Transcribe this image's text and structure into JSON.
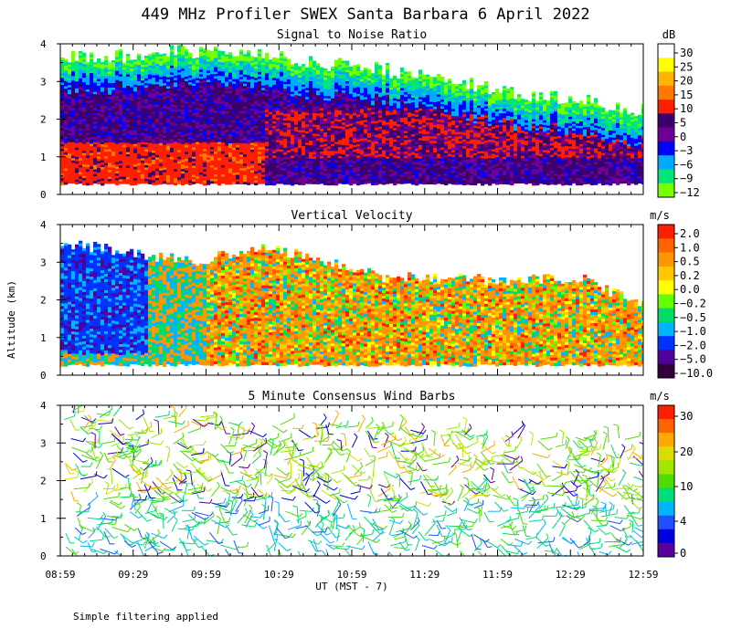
{
  "title": "449 MHz Profiler SWEX Santa Barbara  6 April 2022",
  "ylabel": "Altitude (km)",
  "xlabel": "UT  (MST - 7)",
  "note": "Simple filtering applied",
  "x_ticks": [
    "08:59",
    "09:29",
    "09:59",
    "10:29",
    "10:59",
    "11:29",
    "11:59",
    "12:29",
    "12:59"
  ],
  "y_ticks": [
    "0",
    "1",
    "2",
    "3",
    "4"
  ],
  "chart_data": [
    {
      "type": "heatmap",
      "title": "Signal to Noise Ratio",
      "colorbar_unit": "dB",
      "colorbar_labels": [
        "30",
        "25",
        "20",
        "15",
        "10",
        "5",
        "0",
        "−3",
        "−6",
        "−9",
        "−12"
      ],
      "colorbar_colors": [
        "#ffffff",
        "#ffff00",
        "#ffb400",
        "#ff7800",
        "#ff1e00",
        "#3c006e",
        "#6e0096",
        "#0000ff",
        "#00aaff",
        "#00e678",
        "#78ff00"
      ],
      "x_range": [
        "08:59",
        "12:59"
      ],
      "y_range": [
        0,
        4
      ],
      "data_top_km": [
        3.6,
        3.7,
        3.8,
        3.7,
        3.5,
        3.3,
        3.0,
        2.7,
        2.5,
        2.2
      ],
      "data_bottom_km": 0.3
    },
    {
      "type": "heatmap",
      "title": "Vertical Velocity",
      "colorbar_unit": "m/s",
      "colorbar_labels": [
        "2.0",
        "1.0",
        "0.5",
        "0.2",
        "0.0",
        "−0.2",
        "−0.5",
        "−1.0",
        "−2.0",
        "−5.0",
        "−10.0"
      ],
      "colorbar_colors": [
        "#ff1e00",
        "#ff6400",
        "#ff9600",
        "#ffc800",
        "#ffff00",
        "#64ff00",
        "#00dc64",
        "#00b4ff",
        "#0032ff",
        "#50009b",
        "#32003c"
      ],
      "x_range": [
        "08:59",
        "12:59"
      ],
      "y_range": [
        0,
        4
      ],
      "data_top_km": [
        3.5,
        3.3,
        3.0,
        3.4,
        3.1,
        2.6,
        2.6,
        2.5,
        2.6,
        1.8
      ],
      "data_bottom_km": 0.3
    },
    {
      "type": "scatter",
      "title": "5 Minute Consensus Wind Barbs",
      "colorbar_unit": "m/s",
      "colorbar_labels": [
        "30",
        "20",
        "10",
        "4",
        "0"
      ],
      "colorbar_colors": [
        "#ff1e00",
        "#ff6400",
        "#ffaa00",
        "#dcdc00",
        "#a0e600",
        "#50dc00",
        "#00dc78",
        "#00b4ff",
        "#1e50ff",
        "#0000dc",
        "#5a009b"
      ],
      "x_range": [
        "08:59",
        "12:59"
      ],
      "y_range": [
        0,
        4
      ],
      "data_top_km": 3.9,
      "data_bottom_km": 0.1
    }
  ]
}
